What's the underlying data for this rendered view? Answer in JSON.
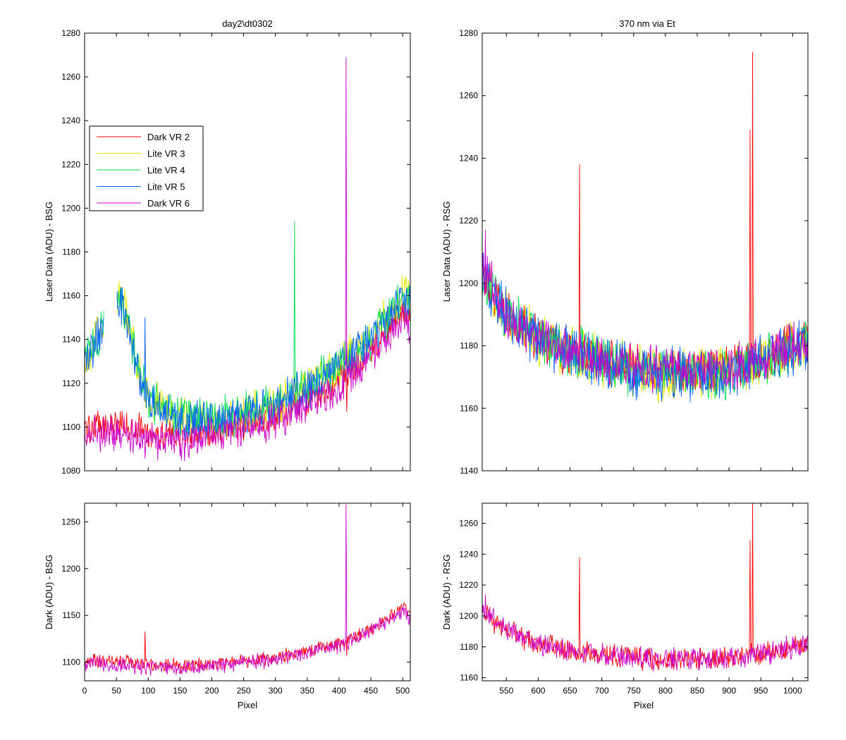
{
  "figure": {
    "background": "#ffffff"
  },
  "chart_data": [
    {
      "type": "line",
      "title": "day2\\dt0302",
      "xlabel": "",
      "ylabel": "Laser Data (ADU) - BSG",
      "xlim": [
        0,
        512
      ],
      "ylim": [
        1080,
        1280
      ],
      "xticks": [
        0,
        50,
        100,
        150,
        200,
        250,
        300,
        350,
        400,
        450,
        500
      ],
      "yticks": [
        1080,
        1100,
        1120,
        1140,
        1160,
        1180,
        1200,
        1220,
        1240,
        1260,
        1280
      ],
      "show_xtick_labels": false,
      "legend": {
        "placement": "upper-left",
        "entries": [
          "Dark VR 2",
          "Lite VR 3",
          "Lite VR 4",
          "Lite VR 5",
          "Dark VR 6"
        ]
      },
      "series": [
        {
          "name": "Dark VR 2",
          "color": "#ff0000",
          "kind": "dark",
          "noise": 6,
          "points": [
            [
              0,
              1100
            ],
            [
              50,
              1101
            ],
            [
              100,
              1098
            ],
            [
              150,
              1096
            ],
            [
              200,
              1098
            ],
            [
              250,
              1101
            ],
            [
              300,
              1105
            ],
            [
              350,
              1112
            ],
            [
              400,
              1120
            ],
            [
              450,
              1135
            ],
            [
              500,
              1152
            ],
            [
              512,
              1150
            ]
          ],
          "spikes": [
            [
              412,
              1107
            ]
          ]
        },
        {
          "name": "Lite VR 3",
          "color": "#e6e600",
          "kind": "lite",
          "noise": 8,
          "points": [
            [
              0,
              1130
            ],
            [
              30,
              1148
            ],
            [
              40,
              null
            ],
            [
              50,
              1160
            ],
            [
              60,
              1158
            ],
            [
              80,
              1132
            ],
            [
              100,
              1112
            ],
            [
              150,
              1105
            ],
            [
              200,
              1102
            ],
            [
              250,
              1106
            ],
            [
              300,
              1110
            ],
            [
              350,
              1118
            ],
            [
              400,
              1128
            ],
            [
              450,
              1140
            ],
            [
              500,
              1160
            ],
            [
              512,
              1160
            ]
          ],
          "spikes": []
        },
        {
          "name": "Lite VR 4",
          "color": "#00e050",
          "kind": "lite",
          "noise": 8,
          "points": [
            [
              0,
              1132
            ],
            [
              30,
              1145
            ],
            [
              40,
              null
            ],
            [
              50,
              1160
            ],
            [
              60,
              1158
            ],
            [
              80,
              1132
            ],
            [
              100,
              1112
            ],
            [
              150,
              1105
            ],
            [
              200,
              1103
            ],
            [
              250,
              1107
            ],
            [
              300,
              1111
            ],
            [
              350,
              1118
            ],
            [
              400,
              1128
            ],
            [
              450,
              1140
            ],
            [
              500,
              1160
            ],
            [
              512,
              1160
            ]
          ],
          "spikes": [
            [
              330,
              1194
            ]
          ]
        },
        {
          "name": "Lite VR 5",
          "color": "#0060ff",
          "kind": "lite",
          "noise": 8,
          "points": [
            [
              0,
              1130
            ],
            [
              30,
              1145
            ],
            [
              40,
              null
            ],
            [
              50,
              1158
            ],
            [
              60,
              1156
            ],
            [
              80,
              1130
            ],
            [
              100,
              1112
            ],
            [
              150,
              1104
            ],
            [
              200,
              1102
            ],
            [
              250,
              1106
            ],
            [
              300,
              1110
            ],
            [
              350,
              1118
            ],
            [
              400,
              1128
            ],
            [
              450,
              1140
            ],
            [
              500,
              1160
            ],
            [
              512,
              1158
            ]
          ],
          "spikes": [
            [
              95,
              1150
            ]
          ]
        },
        {
          "name": "Dark VR 6",
          "color": "#cc00cc",
          "kind": "dark",
          "noise": 7,
          "points": [
            [
              0,
              1098
            ],
            [
              50,
              1097
            ],
            [
              100,
              1094
            ],
            [
              150,
              1093
            ],
            [
              200,
              1096
            ],
            [
              250,
              1099
            ],
            [
              300,
              1103
            ],
            [
              350,
              1110
            ],
            [
              400,
              1118
            ],
            [
              450,
              1133
            ],
            [
              500,
              1150
            ],
            [
              512,
              1145
            ]
          ],
          "spikes": [
            [
              411,
              1269
            ]
          ]
        }
      ]
    },
    {
      "type": "line",
      "title": "370 nm via Et",
      "xlabel": "",
      "ylabel": "Laser Data (ADU) - RSG",
      "xlim": [
        512,
        1024
      ],
      "ylim": [
        1140,
        1280
      ],
      "xticks": [
        550,
        600,
        650,
        700,
        750,
        800,
        850,
        900,
        950,
        1000
      ],
      "yticks": [
        1140,
        1160,
        1180,
        1200,
        1220,
        1240,
        1260,
        1280
      ],
      "show_xtick_labels": false,
      "series": [
        {
          "name": "Dark VR 2",
          "color": "#ff0000",
          "noise": 6,
          "points": [
            [
              512,
              1203
            ],
            [
              550,
              1190
            ],
            [
              600,
              1182
            ],
            [
              650,
              1178
            ],
            [
              700,
              1175
            ],
            [
              750,
              1173
            ],
            [
              800,
              1172
            ],
            [
              850,
              1172
            ],
            [
              900,
              1173
            ],
            [
              950,
              1175
            ],
            [
              1000,
              1180
            ],
            [
              1024,
              1182
            ]
          ],
          "spikes": [
            [
              665,
              1238
            ],
            [
              933,
              1249
            ],
            [
              937,
              1274
            ]
          ]
        },
        {
          "name": "Lite VR 3",
          "color": "#e6e600",
          "noise": 7,
          "points": [
            [
              512,
              1203
            ],
            [
              550,
              1190
            ],
            [
              600,
              1182
            ],
            [
              650,
              1178
            ],
            [
              700,
              1175
            ],
            [
              750,
              1172
            ],
            [
              800,
              1171
            ],
            [
              850,
              1171
            ],
            [
              900,
              1172
            ],
            [
              950,
              1175
            ],
            [
              1000,
              1179
            ],
            [
              1024,
              1182
            ]
          ],
          "spikes": []
        },
        {
          "name": "Lite VR 4",
          "color": "#00e050",
          "noise": 7,
          "points": [
            [
              512,
              1203
            ],
            [
              550,
              1190
            ],
            [
              600,
              1182
            ],
            [
              650,
              1178
            ],
            [
              700,
              1175
            ],
            [
              750,
              1172
            ],
            [
              800,
              1171
            ],
            [
              850,
              1171
            ],
            [
              900,
              1172
            ],
            [
              950,
              1175
            ],
            [
              1000,
              1179
            ],
            [
              1024,
              1182
            ]
          ],
          "spikes": []
        },
        {
          "name": "Lite VR 5",
          "color": "#0060ff",
          "noise": 7,
          "points": [
            [
              512,
              1203
            ],
            [
              550,
              1190
            ],
            [
              600,
              1182
            ],
            [
              650,
              1178
            ],
            [
              700,
              1175
            ],
            [
              750,
              1172
            ],
            [
              800,
              1171
            ],
            [
              850,
              1170
            ],
            [
              900,
              1172
            ],
            [
              950,
              1175
            ],
            [
              1000,
              1179
            ],
            [
              1024,
              1182
            ]
          ],
          "spikes": []
        },
        {
          "name": "Dark VR 6",
          "color": "#cc00cc",
          "noise": 6,
          "points": [
            [
              512,
              1205
            ],
            [
              550,
              1190
            ],
            [
              600,
              1182
            ],
            [
              650,
              1178
            ],
            [
              700,
              1175
            ],
            [
              750,
              1173
            ],
            [
              800,
              1172
            ],
            [
              850,
              1172
            ],
            [
              900,
              1173
            ],
            [
              950,
              1175
            ],
            [
              1000,
              1180
            ],
            [
              1024,
              1182
            ]
          ],
          "spikes": [
            [
              517,
              1217
            ]
          ]
        }
      ]
    },
    {
      "type": "line",
      "title": "",
      "xlabel": "Pixel",
      "ylabel": "Dark (ADU) - BSG",
      "xlim": [
        0,
        512
      ],
      "ylim": [
        1080,
        1270
      ],
      "xticks": [
        0,
        50,
        100,
        150,
        200,
        250,
        300,
        350,
        400,
        450,
        500
      ],
      "yticks": [
        1100,
        1150,
        1200,
        1250
      ],
      "show_xtick_labels": true,
      "series": [
        {
          "name": "Dark VR 2",
          "color": "#ff0000",
          "noise": 6,
          "points": [
            [
              0,
              1101
            ],
            [
              50,
              1101
            ],
            [
              100,
              1098
            ],
            [
              150,
              1096
            ],
            [
              200,
              1098
            ],
            [
              250,
              1101
            ],
            [
              300,
              1105
            ],
            [
              350,
              1112
            ],
            [
              400,
              1120
            ],
            [
              450,
              1135
            ],
            [
              500,
              1158
            ],
            [
              512,
              1150
            ]
          ],
          "spikes": [
            [
              95,
              1133
            ],
            [
              412,
              1107
            ]
          ]
        },
        {
          "name": "Dark VR 6",
          "color": "#cc00cc",
          "noise": 7,
          "points": [
            [
              0,
              1098
            ],
            [
              50,
              1097
            ],
            [
              100,
              1094
            ],
            [
              150,
              1093
            ],
            [
              200,
              1096
            ],
            [
              250,
              1099
            ],
            [
              300,
              1103
            ],
            [
              350,
              1110
            ],
            [
              400,
              1118
            ],
            [
              450,
              1133
            ],
            [
              500,
              1155
            ],
            [
              512,
              1145
            ]
          ],
          "spikes": [
            [
              411,
              1269
            ]
          ]
        }
      ]
    },
    {
      "type": "line",
      "title": "",
      "xlabel": "Pixel",
      "ylabel": "Dark (ADU) - RSG",
      "xlim": [
        512,
        1024
      ],
      "ylim": [
        1158,
        1273
      ],
      "xticks": [
        550,
        600,
        650,
        700,
        750,
        800,
        850,
        900,
        950,
        1000
      ],
      "yticks": [
        1160,
        1180,
        1200,
        1220,
        1240,
        1260
      ],
      "show_xtick_labels": true,
      "series": [
        {
          "name": "Dark VR 2",
          "color": "#ff0000",
          "noise": 6,
          "points": [
            [
              512,
              1203
            ],
            [
              550,
              1190
            ],
            [
              600,
              1182
            ],
            [
              650,
              1178
            ],
            [
              700,
              1175
            ],
            [
              750,
              1173
            ],
            [
              800,
              1172
            ],
            [
              850,
              1172
            ],
            [
              900,
              1173
            ],
            [
              950,
              1175
            ],
            [
              1000,
              1180
            ],
            [
              1024,
              1182
            ]
          ],
          "spikes": [
            [
              665,
              1238
            ],
            [
              933,
              1249
            ],
            [
              937,
              1274
            ]
          ]
        },
        {
          "name": "Dark VR 6",
          "color": "#cc00cc",
          "noise": 6,
          "points": [
            [
              512,
              1205
            ],
            [
              550,
              1190
            ],
            [
              600,
              1182
            ],
            [
              650,
              1178
            ],
            [
              700,
              1175
            ],
            [
              750,
              1173
            ],
            [
              800,
              1172
            ],
            [
              850,
              1172
            ],
            [
              900,
              1173
            ],
            [
              950,
              1175
            ],
            [
              1000,
              1180
            ],
            [
              1024,
              1182
            ]
          ],
          "spikes": [
            [
              517,
              1214
            ]
          ]
        }
      ]
    }
  ]
}
